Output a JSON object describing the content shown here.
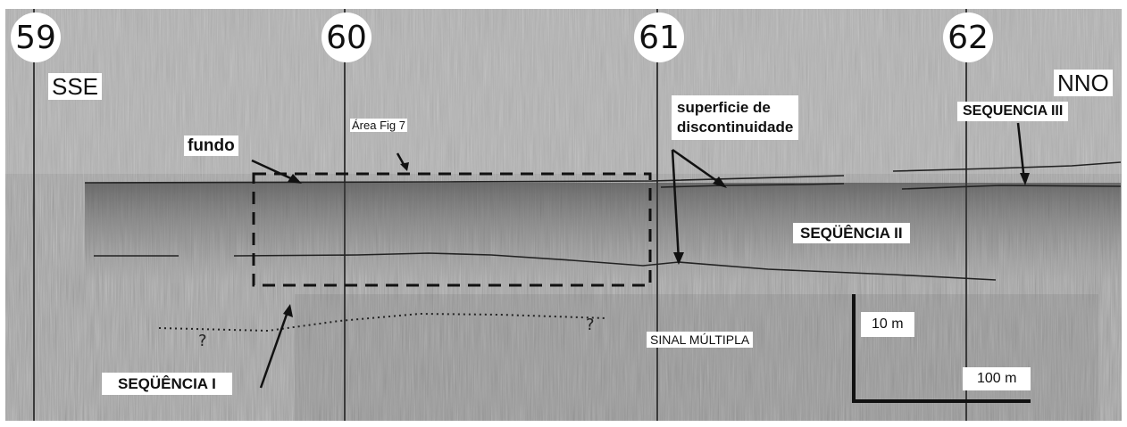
{
  "markers": [
    "59",
    "60",
    "61",
    "62"
  ],
  "directions": {
    "left": "SSE",
    "right": "NNO"
  },
  "labels": {
    "area_fig": "Área Fig 7",
    "fundo": "fundo",
    "superficie_line1": "superficie de",
    "superficie_line2": "discontinuidade",
    "sequencia_iii": "SEQUENCIA III",
    "sequencia_ii": "SEQÜÊNCIA II",
    "sequencia_i": "SEQÜÊNCIA I",
    "sinal_multipla": "SINAL MÚLTIPLA",
    "question_mark": "?"
  },
  "scale": {
    "vertical": "10 m",
    "horizontal": "100 m"
  },
  "colors": {
    "section_background": "#9a9a9a",
    "label_background": "#ffffff",
    "ink": "#111111"
  }
}
